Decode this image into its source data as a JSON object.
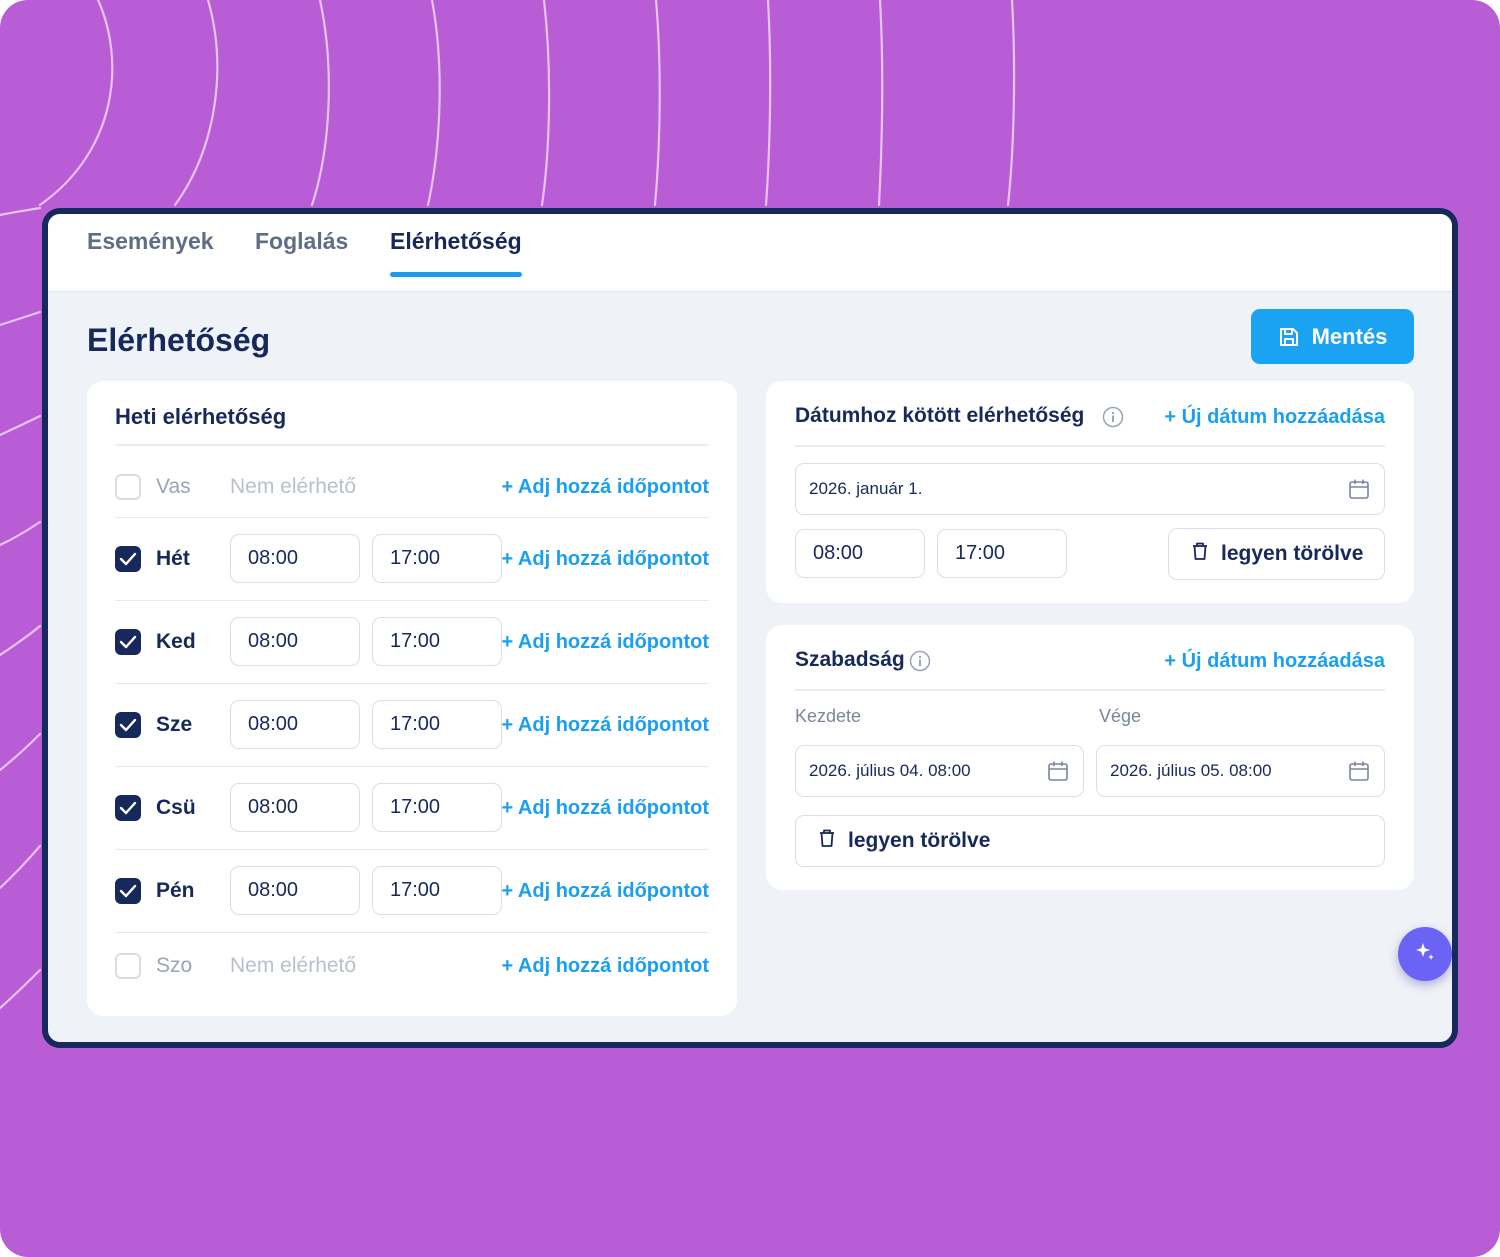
{
  "tabs": [
    {
      "label": "Események"
    },
    {
      "label": "Foglalás"
    },
    {
      "label": "Elérhetőség"
    }
  ],
  "active_tab": "Elérhetőség",
  "page_title": "Elérhetőség",
  "save_button": {
    "label": "Mentés",
    "icon": "floppy-disk-icon"
  },
  "weekly": {
    "title": "Heti elérhetőség",
    "add_label": "+ Adj hozzá időpontot",
    "unavailable_label": "Nem elérhető",
    "days": [
      {
        "label": "Vas",
        "checked": false,
        "from": "",
        "to": ""
      },
      {
        "label": "Hét",
        "checked": true,
        "from": "08:00",
        "to": "17:00"
      },
      {
        "label": "Ked",
        "checked": true,
        "from": "08:00",
        "to": "17:00"
      },
      {
        "label": "Sze",
        "checked": true,
        "from": "08:00",
        "to": "17:00"
      },
      {
        "label": "Csü",
        "checked": true,
        "from": "08:00",
        "to": "17:00"
      },
      {
        "label": "Pén",
        "checked": true,
        "from": "08:00",
        "to": "17:00"
      },
      {
        "label": "Szo",
        "checked": false,
        "from": "",
        "to": ""
      }
    ]
  },
  "date_specific": {
    "title": "Dátumhoz kötött elérhetőség",
    "add_label": "+ Új dátum hozzáadása",
    "date": "2026. január 1.",
    "from": "08:00",
    "to": "17:00",
    "delete_label": "legyen törölve"
  },
  "vacation": {
    "title": "Szabadság",
    "add_label": "+ Új dátum hozzáadása",
    "start_label": "Kezdete",
    "end_label": "Vége",
    "start_value": "2026. július 04. 08:00",
    "end_value": "2026. július 05. 08:00",
    "delete_label": "legyen törölve"
  },
  "colors": {
    "background": "#b85dd6",
    "navy": "#17295a",
    "accent": "#1ba3f3",
    "fab": "#6b63f5"
  },
  "fab": {
    "icon": "sparkle-icon"
  }
}
